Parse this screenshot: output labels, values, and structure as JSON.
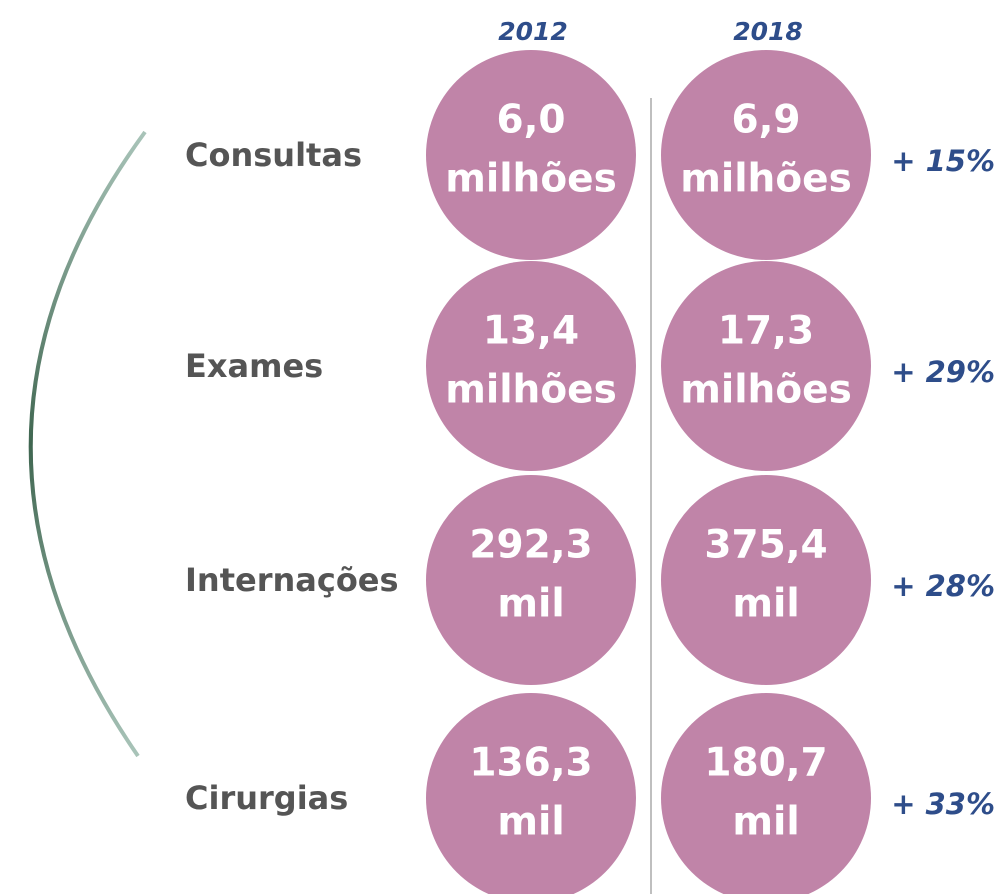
{
  "years": [
    "2012",
    "2018"
  ],
  "rows": [
    {
      "label": "Consultas",
      "first": {
        "value": "6,0",
        "unit": "milhões"
      },
      "second": {
        "value": "6,9",
        "unit": "milhões"
      },
      "change": "+ 15%"
    },
    {
      "label": "Exames",
      "first": {
        "value": "13,4",
        "unit": "milhões"
      },
      "second": {
        "value": "17,3",
        "unit": "milhões"
      },
      "change": "+ 29%"
    },
    {
      "label": "Internações",
      "first": {
        "value": "292,3",
        "unit": "mil"
      },
      "second": {
        "value": "375,4",
        "unit": "mil"
      },
      "change": "+ 28%"
    },
    {
      "label": "Cirurgias",
      "first": {
        "value": "136,3",
        "unit": "mil"
      },
      "second": {
        "value": "180,7",
        "unit": "mil"
      },
      "change": "+ 33%"
    }
  ]
}
